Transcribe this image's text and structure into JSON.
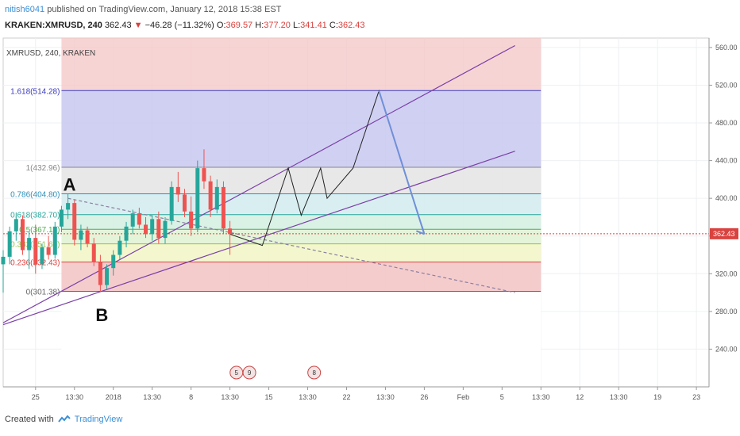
{
  "header": {
    "user": "nitish6041",
    "published": " published on TradingView.com, January 12, 2018 15:38 EST",
    "symbol": "KRAKEN:XMRUSD, 240",
    "price": "362.43",
    "arrow": "▼",
    "change": "−46.28 (−11.32%)",
    "o_label": "O:",
    "o": "369.57",
    "h_label": "H:",
    "h": "377.20",
    "l_label": "L:",
    "l": "341.41",
    "c_label": "C:",
    "c": "362.43"
  },
  "footer": {
    "created": "Created with",
    "brand": "TradingView"
  },
  "chart_data": {
    "type": "line",
    "title": "XMRUSD, 240, KRAKEN",
    "ylim": [
      200,
      570
    ],
    "y_ticks": [
      240,
      280,
      320,
      360,
      400,
      440,
      480,
      520,
      560
    ],
    "y_tick_labels": [
      "240.00",
      "280.00",
      "320.00",
      "360.00",
      "400.00",
      "440.00",
      "480.00",
      "520.00",
      "560.00"
    ],
    "x_ticks": [
      {
        "i": 5,
        "label": "25"
      },
      {
        "i": 11,
        "label": "13:30"
      },
      {
        "i": 17,
        "label": "2018"
      },
      {
        "i": 23,
        "label": "13:30"
      },
      {
        "i": 29,
        "label": "8"
      },
      {
        "i": 35,
        "label": "13:30"
      },
      {
        "i": 41,
        "label": "15"
      },
      {
        "i": 47,
        "label": "13:30"
      },
      {
        "i": 53,
        "label": "22"
      },
      {
        "i": 59,
        "label": "13:30"
      },
      {
        "i": 65,
        "label": "26"
      },
      {
        "i": 71,
        "label": "Feb"
      },
      {
        "i": 77,
        "label": "5"
      },
      {
        "i": 83,
        "label": "13:30"
      },
      {
        "i": 89,
        "label": "12"
      },
      {
        "i": 95,
        "label": "13:30"
      },
      {
        "i": 101,
        "label": "19"
      },
      {
        "i": 107,
        "label": "23"
      }
    ],
    "last_price": 362.43,
    "last_price_label": "362.43",
    "colors": {
      "up": "#26a69a",
      "down": "#ef5350",
      "fib_red": "#f4c6c6",
      "fib_blue": "#c8c8f0",
      "channel": "#7a3fa8",
      "projection": "#6f8fd8"
    },
    "fib_levels": [
      {
        "label": "1.618(514.28)",
        "value": 514.28,
        "color": "#3b3bbf"
      },
      {
        "label": "1(432.96)",
        "value": 432.96,
        "color": "#888888"
      },
      {
        "label": "0.786(404.80)",
        "value": 404.8,
        "color": "#2d8fb7"
      },
      {
        "label": "0.618(382.70)",
        "value": 382.7,
        "color": "#26a69a"
      },
      {
        "label": "0.5(367.17)",
        "value": 367.17,
        "color": "#4caf50"
      },
      {
        "label": "0.382(351.65)",
        "value": 351.65,
        "color": "#8bc34a"
      },
      {
        "label": "0.236(332.43)",
        "value": 332.43,
        "color": "#d9423f"
      },
      {
        "label": "0(301.38)",
        "value": 301.38,
        "color": "#666666"
      }
    ],
    "annotations": [
      {
        "text": "A",
        "i": 10,
        "v": 408
      },
      {
        "text": "B",
        "i": 15,
        "v": 270
      }
    ],
    "events": [
      {
        "i": 36,
        "text": "5"
      },
      {
        "i": 38,
        "text": "9"
      },
      {
        "i": 48,
        "text": "8"
      }
    ],
    "candles": [
      [
        0,
        330,
        345,
        300,
        338
      ],
      [
        1,
        338,
        370,
        330,
        365
      ],
      [
        2,
        365,
        385,
        355,
        378
      ],
      [
        3,
        378,
        382,
        340,
        345
      ],
      [
        4,
        345,
        365,
        325,
        358
      ],
      [
        5,
        358,
        372,
        320,
        330
      ],
      [
        6,
        330,
        352,
        325,
        348
      ],
      [
        7,
        348,
        360,
        335,
        340
      ],
      [
        8,
        340,
        375,
        336,
        370
      ],
      [
        9,
        370,
        392,
        364,
        388
      ],
      [
        10,
        388,
        405,
        378,
        395
      ],
      [
        11,
        395,
        398,
        350,
        356
      ],
      [
        12,
        356,
        372,
        345,
        366
      ],
      [
        13,
        366,
        370,
        348,
        352
      ],
      [
        14,
        352,
        358,
        328,
        332
      ],
      [
        15,
        332,
        340,
        301,
        308
      ],
      [
        16,
        308,
        330,
        304,
        326
      ],
      [
        17,
        326,
        345,
        318,
        340
      ],
      [
        18,
        340,
        360,
        335,
        355
      ],
      [
        19,
        355,
        375,
        348,
        370
      ],
      [
        20,
        370,
        388,
        362,
        384
      ],
      [
        21,
        384,
        390,
        368,
        372
      ],
      [
        22,
        372,
        380,
        358,
        362
      ],
      [
        23,
        362,
        382,
        355,
        378
      ],
      [
        24,
        378,
        386,
        352,
        358
      ],
      [
        25,
        358,
        380,
        352,
        376
      ],
      [
        26,
        376,
        418,
        372,
        412
      ],
      [
        27,
        412,
        428,
        396,
        404
      ],
      [
        28,
        404,
        410,
        380,
        386
      ],
      [
        29,
        386,
        402,
        360,
        368
      ],
      [
        30,
        368,
        440,
        364,
        432
      ],
      [
        31,
        432,
        452,
        410,
        418
      ],
      [
        32,
        418,
        424,
        380,
        388
      ],
      [
        33,
        388,
        420,
        384,
        412
      ],
      [
        34,
        412,
        418,
        362,
        368
      ],
      [
        35,
        368,
        376,
        340,
        362
      ]
    ],
    "channel_lines": [
      {
        "a": [
          0,
          268
        ],
        "b": [
          79,
          562
        ]
      },
      {
        "a": [
          0,
          266
        ],
        "b": [
          79,
          450
        ]
      },
      {
        "a": [
          10,
          400
        ],
        "b": [
          79,
          300
        ]
      }
    ],
    "projection": [
      [
        35,
        362
      ],
      [
        40,
        350
      ],
      [
        44,
        432
      ],
      [
        46,
        382
      ],
      [
        49,
        432
      ],
      [
        50,
        400
      ],
      [
        54,
        432
      ],
      [
        58,
        514
      ],
      [
        65,
        362
      ]
    ]
  }
}
